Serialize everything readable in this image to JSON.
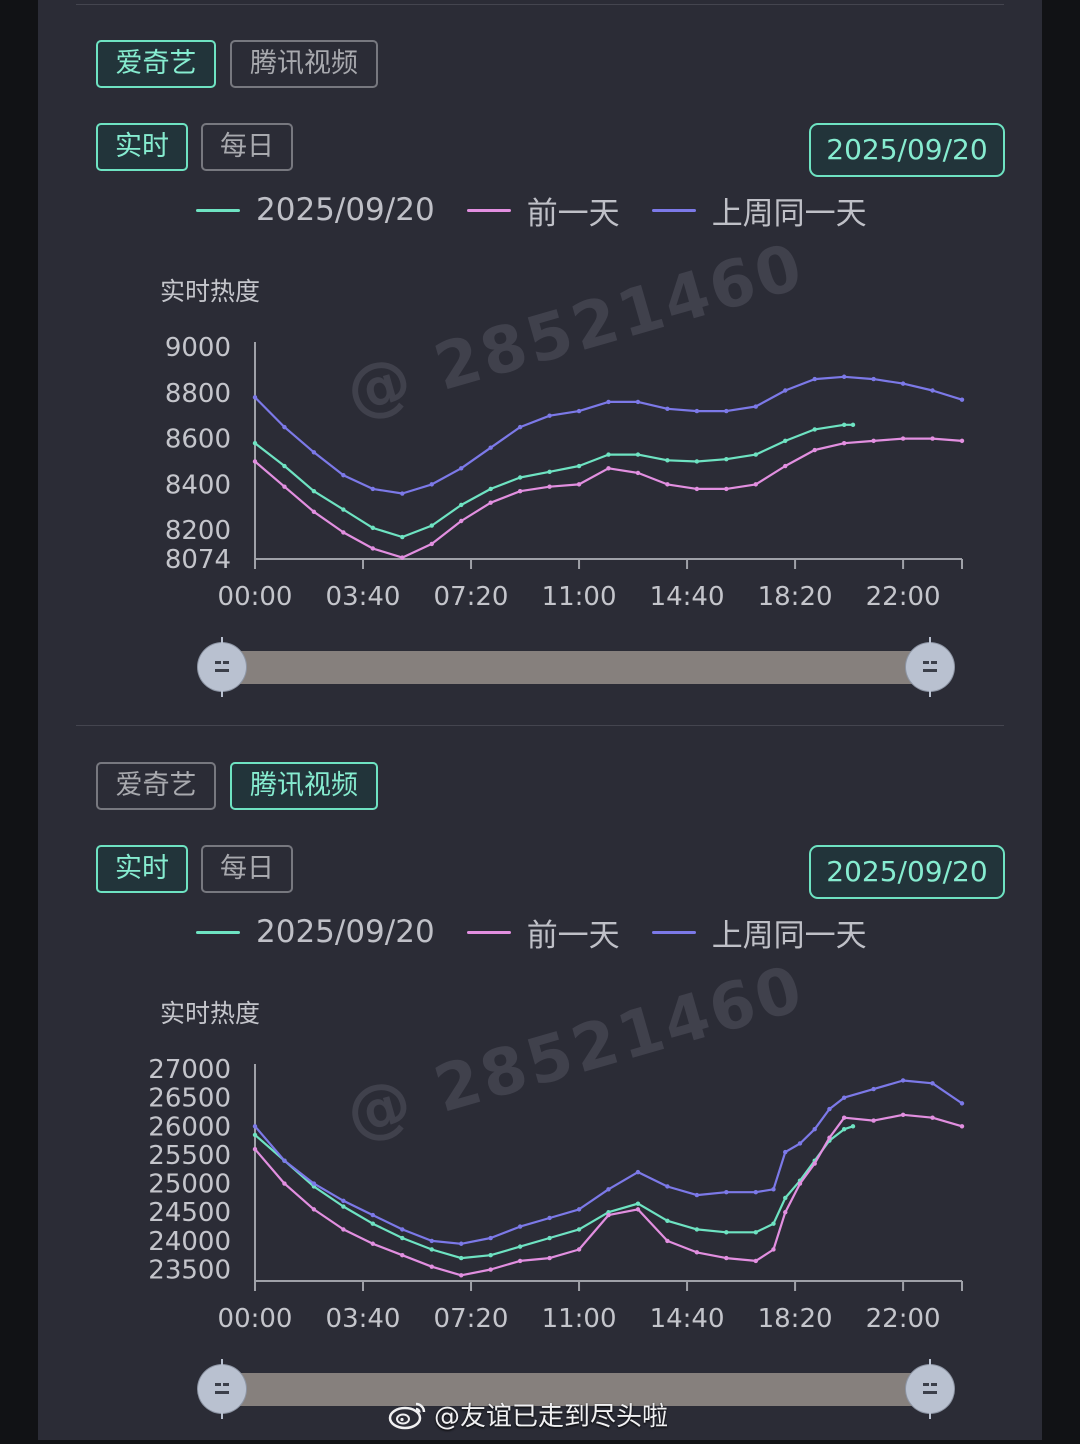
{
  "colors": {
    "today": "#6ee3c2",
    "prev_day": "#e28fe0",
    "last_week": "#7c79e8"
  },
  "legend": {
    "today": "2025/09/20",
    "prev_day": "前一天",
    "last_week": "上周同一天"
  },
  "watermark": "@ 28521460",
  "footer": {
    "handle": "@友谊已走到尽头啦"
  },
  "sections": [
    {
      "platform_tabs": [
        "爱奇艺",
        "腾讯视频"
      ],
      "active_platform": 0,
      "mode_tabs": [
        "实时",
        "每日"
      ],
      "active_mode": 0,
      "date": "2025/09/20",
      "y_title": "实时热度"
    },
    {
      "platform_tabs": [
        "爱奇艺",
        "腾讯视频"
      ],
      "active_platform": 1,
      "mode_tabs": [
        "实时",
        "每日"
      ],
      "active_mode": 0,
      "date": "2025/09/20",
      "y_title": "实时热度"
    }
  ],
  "chart_data": [
    {
      "type": "line",
      "ylabel": "实时热度",
      "ylim": [
        8074,
        9000
      ],
      "y_ticks": [
        9000,
        8800,
        8600,
        8400,
        8200,
        8074
      ],
      "x_ticks": [
        "00:00",
        "03:40",
        "07:20",
        "11:00",
        "14:40",
        "18:20",
        "22:00"
      ],
      "x_range_hours": [
        0,
        24
      ],
      "series": [
        {
          "name": "2025/09/20",
          "x": [
            0,
            1,
            2,
            3,
            4,
            5,
            6,
            7,
            8,
            9,
            10,
            11,
            12,
            13,
            14,
            15,
            16,
            17,
            18,
            19,
            20,
            20.3
          ],
          "y": [
            8580,
            8480,
            8370,
            8290,
            8210,
            8170,
            8220,
            8310,
            8380,
            8430,
            8455,
            8480,
            8530,
            8530,
            8505,
            8500,
            8510,
            8530,
            8590,
            8640,
            8660,
            8660
          ]
        },
        {
          "name": "前一天",
          "x": [
            0,
            1,
            2,
            3,
            4,
            5,
            6,
            7,
            8,
            9,
            10,
            11,
            12,
            13,
            14,
            15,
            16,
            17,
            18,
            19,
            20,
            21,
            22,
            23,
            24
          ],
          "y": [
            8500,
            8390,
            8280,
            8190,
            8120,
            8080,
            8140,
            8240,
            8320,
            8370,
            8390,
            8400,
            8470,
            8450,
            8400,
            8380,
            8380,
            8400,
            8480,
            8550,
            8580,
            8590,
            8600,
            8600,
            8590
          ]
        },
        {
          "name": "上周同一天",
          "x": [
            0,
            1,
            2,
            3,
            4,
            5,
            6,
            7,
            8,
            9,
            10,
            11,
            12,
            13,
            14,
            15,
            16,
            17,
            18,
            19,
            20,
            21,
            22,
            23,
            24
          ],
          "y": [
            8780,
            8650,
            8540,
            8440,
            8380,
            8360,
            8400,
            8470,
            8560,
            8650,
            8700,
            8720,
            8760,
            8760,
            8730,
            8720,
            8720,
            8740,
            8810,
            8860,
            8870,
            8860,
            8840,
            8810,
            8770
          ]
        }
      ]
    },
    {
      "type": "line",
      "ylabel": "实时热度",
      "ylim": [
        23300,
        27000
      ],
      "y_ticks": [
        27000,
        26500,
        26000,
        25500,
        25000,
        24500,
        24000,
        23500
      ],
      "x_ticks": [
        "00:00",
        "03:40",
        "07:20",
        "11:00",
        "14:40",
        "18:20",
        "22:00"
      ],
      "x_range_hours": [
        0,
        24
      ],
      "series": [
        {
          "name": "2025/09/20",
          "x": [
            0,
            1,
            2,
            3,
            4,
            5,
            6,
            7,
            8,
            9,
            10,
            11,
            12,
            13,
            14,
            15,
            16,
            17,
            17.6,
            18,
            18.5,
            19,
            19.5,
            20,
            20.3
          ],
          "y": [
            25850,
            25400,
            24950,
            24600,
            24300,
            24050,
            23850,
            23700,
            23750,
            23900,
            24050,
            24200,
            24500,
            24650,
            24350,
            24200,
            24150,
            24150,
            24300,
            24750,
            25050,
            25400,
            25750,
            25950,
            26000
          ]
        },
        {
          "name": "前一天",
          "x": [
            0,
            1,
            2,
            3,
            4,
            5,
            6,
            7,
            8,
            9,
            10,
            11,
            12,
            13,
            14,
            15,
            16,
            17,
            17.6,
            18,
            18.5,
            19,
            19.5,
            20,
            21,
            22,
            23,
            24
          ],
          "y": [
            25600,
            25000,
            24550,
            24200,
            23950,
            23750,
            23550,
            23400,
            23500,
            23650,
            23700,
            23850,
            24450,
            24550,
            24000,
            23800,
            23700,
            23650,
            23850,
            24500,
            25000,
            25350,
            25800,
            26150,
            26100,
            26200,
            26150,
            26000
          ]
        },
        {
          "name": "上周同一天",
          "x": [
            0,
            1,
            2,
            3,
            4,
            5,
            6,
            7,
            8,
            9,
            10,
            11,
            12,
            13,
            14,
            15,
            16,
            17,
            17.6,
            18,
            18.5,
            19,
            19.5,
            20,
            21,
            22,
            23,
            24
          ],
          "y": [
            26000,
            25400,
            25000,
            24700,
            24450,
            24200,
            24000,
            23950,
            24050,
            24250,
            24400,
            24550,
            24900,
            25200,
            24950,
            24800,
            24850,
            24850,
            24900,
            25550,
            25700,
            25950,
            26300,
            26500,
            26650,
            26800,
            26750,
            26400
          ]
        }
      ]
    }
  ]
}
